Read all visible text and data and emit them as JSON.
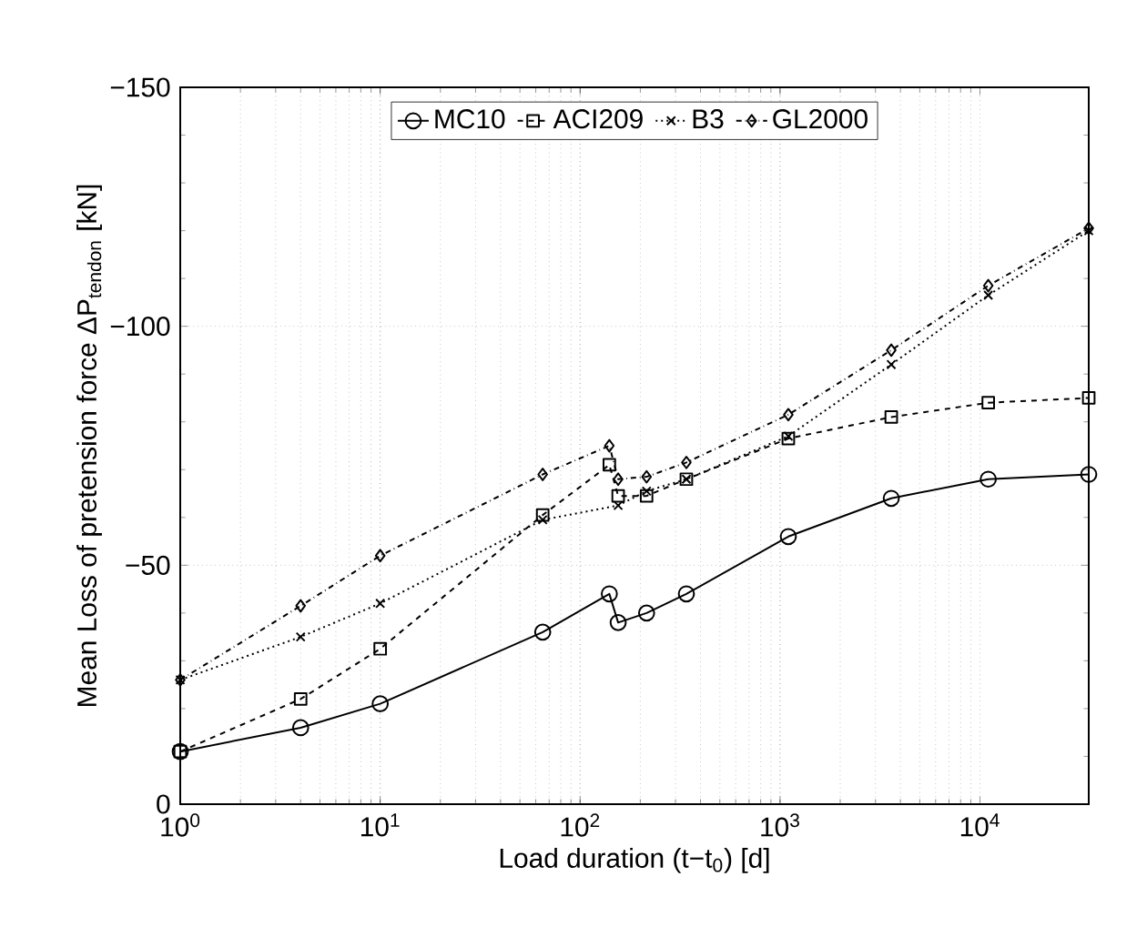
{
  "chart_data": {
    "type": "line",
    "xlabel": "Load duration (t−t$_{0}$) [d]",
    "ylabel": "Mean Loss of pretension force ΔP$_{tendon}$ [kN]",
    "log": "x",
    "grid": true,
    "legend": "top",
    "xlim": [
      1,
      35000
    ],
    "xticks": [
      {
        "value": 1,
        "label": "10$^{0}$"
      },
      {
        "value": 10,
        "label": "10$^{1}$"
      },
      {
        "value": 100,
        "label": "10$^{2}$"
      },
      {
        "value": 1000,
        "label": "10$^{3}$"
      },
      {
        "value": 10000,
        "label": "10$^{4}$"
      }
    ],
    "ylim": [
      0,
      -150
    ],
    "yticks": [
      {
        "value": 0,
        "label": "0"
      },
      {
        "value": -50,
        "label": "−50"
      },
      {
        "value": -100,
        "label": "−100"
      },
      {
        "value": -150,
        "label": "−150"
      }
    ],
    "x": [
      1,
      4,
      10,
      65,
      140,
      155,
      215,
      340,
      1100,
      3600,
      11000,
      35000
    ],
    "series": [
      {
        "name": "MC10",
        "color": "#000000",
        "marker": "circle",
        "line_style": "solid",
        "values": [
          -11,
          -16,
          -21,
          -36,
          -44,
          -38,
          -40,
          -44,
          -56,
          -64,
          -68,
          -69
        ]
      },
      {
        "name": "ACI209",
        "color": "#000000",
        "marker": "square",
        "line_style": "dashed",
        "values": [
          -11,
          -22,
          -32.5,
          -60.5,
          -71,
          -64.5,
          -64.5,
          -68,
          -76.5,
          -81,
          -84,
          -85
        ]
      },
      {
        "name": "B3",
        "color": "#000000",
        "marker": "cross",
        "line_style": "dotted",
        "x": [
          1,
          4,
          10,
          65,
          155,
          215,
          340,
          1100,
          3600,
          11000,
          35000
        ],
        "values": [
          -26,
          -35,
          -42,
          -59.5,
          -62.5,
          -65.5,
          -68,
          -77,
          -92,
          -106.5,
          -120
        ]
      },
      {
        "name": "GL2000",
        "color": "#000000",
        "marker": "diamond",
        "line_style": "dashdot",
        "values": [
          -26,
          -41.5,
          -52,
          -69,
          -75,
          -68,
          -68.5,
          -71.5,
          -81.5,
          -95,
          -108.5,
          -120.5
        ]
      }
    ]
  }
}
